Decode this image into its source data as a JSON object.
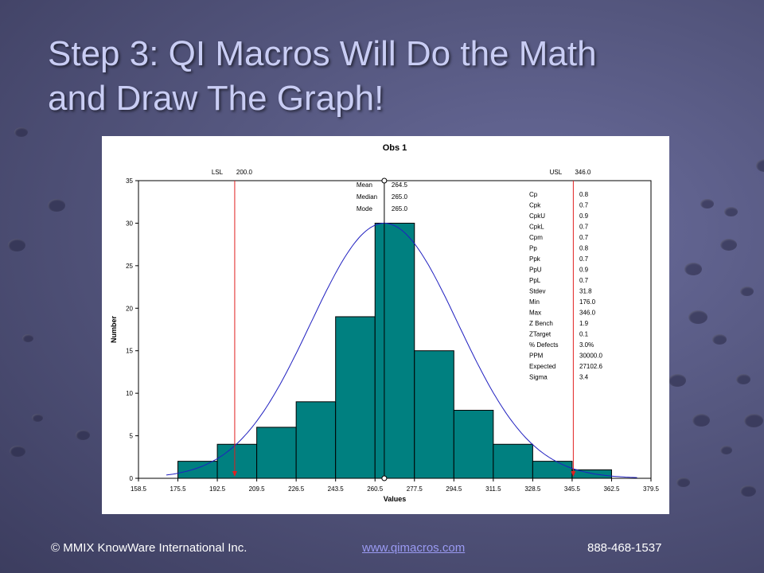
{
  "slide": {
    "title_line1": "Step 3: QI Macros Will Do the Math",
    "title_line2": "and Draw The Graph!"
  },
  "footer": {
    "copyright": "© MMIX  KnowWare International Inc.",
    "link": "www.qimacros.com",
    "phone": "888-468-1537"
  },
  "chart_data": {
    "type": "bar",
    "title": "Obs 1",
    "xlabel": "Values",
    "ylabel": "Number",
    "xlim": [
      158.5,
      379.5
    ],
    "ylim": [
      0,
      35
    ],
    "x_ticks": [
      "158.5",
      "175.5",
      "192.5",
      "209.5",
      "226.5",
      "243.5",
      "260.5",
      "277.5",
      "294.5",
      "311.5",
      "328.5",
      "345.5",
      "362.5",
      "379.5"
    ],
    "y_ticks": [
      "0",
      "5",
      "10",
      "15",
      "20",
      "25",
      "30",
      "35"
    ],
    "bins": [
      {
        "start": 175.5,
        "end": 192.5,
        "count": 2
      },
      {
        "start": 192.5,
        "end": 209.5,
        "count": 4
      },
      {
        "start": 209.5,
        "end": 226.5,
        "count": 6
      },
      {
        "start": 226.5,
        "end": 243.5,
        "count": 9
      },
      {
        "start": 243.5,
        "end": 260.5,
        "count": 19
      },
      {
        "start": 260.5,
        "end": 277.5,
        "count": 30
      },
      {
        "start": 277.5,
        "end": 294.5,
        "count": 15
      },
      {
        "start": 294.5,
        "end": 311.5,
        "count": 8
      },
      {
        "start": 311.5,
        "end": 328.5,
        "count": 4
      },
      {
        "start": 328.5,
        "end": 345.5,
        "count": 2
      },
      {
        "start": 345.5,
        "end": 362.5,
        "count": 1
      }
    ],
    "bar_color": "#008080",
    "curve_color": "#2020c0",
    "limit_color": "#e02020",
    "lsl": {
      "label": "LSL",
      "value_text": "200.0",
      "value": 200.0
    },
    "usl": {
      "label": "USL",
      "value_text": "346.0",
      "value": 346.0
    },
    "mean_line_x": 264.5,
    "curve": {
      "mean": 264.5,
      "stdev": 31.8,
      "peak": 30
    },
    "center_stats": [
      {
        "name": "Mean",
        "value": "264.5"
      },
      {
        "name": "Median",
        "value": "265.0"
      },
      {
        "name": "Mode",
        "value": "265.0"
      }
    ],
    "stats": [
      {
        "name": "Cp",
        "value": "0.8"
      },
      {
        "name": "Cpk",
        "value": "0.7"
      },
      {
        "name": "CpkU",
        "value": "0.9"
      },
      {
        "name": "CpkL",
        "value": "0.7"
      },
      {
        "name": "Cpm",
        "value": "0.7"
      },
      {
        "name": "Pp",
        "value": "0.8"
      },
      {
        "name": "Ppk",
        "value": "0.7"
      },
      {
        "name": "PpU",
        "value": "0.9"
      },
      {
        "name": "PpL",
        "value": "0.7"
      },
      {
        "name": "Stdev",
        "value": "31.8"
      },
      {
        "name": "Min",
        "value": "176.0"
      },
      {
        "name": "Max",
        "value": "346.0"
      },
      {
        "name": "Z Bench",
        "value": "1.9"
      },
      {
        "name": "ZTarget",
        "value": "0.1"
      },
      {
        "name": "% Defects",
        "value": "3.0%"
      },
      {
        "name": "PPM",
        "value": "30000.0"
      },
      {
        "name": "Expected",
        "value": "27102.6"
      },
      {
        "name": "Sigma",
        "value": "3.4"
      }
    ]
  }
}
